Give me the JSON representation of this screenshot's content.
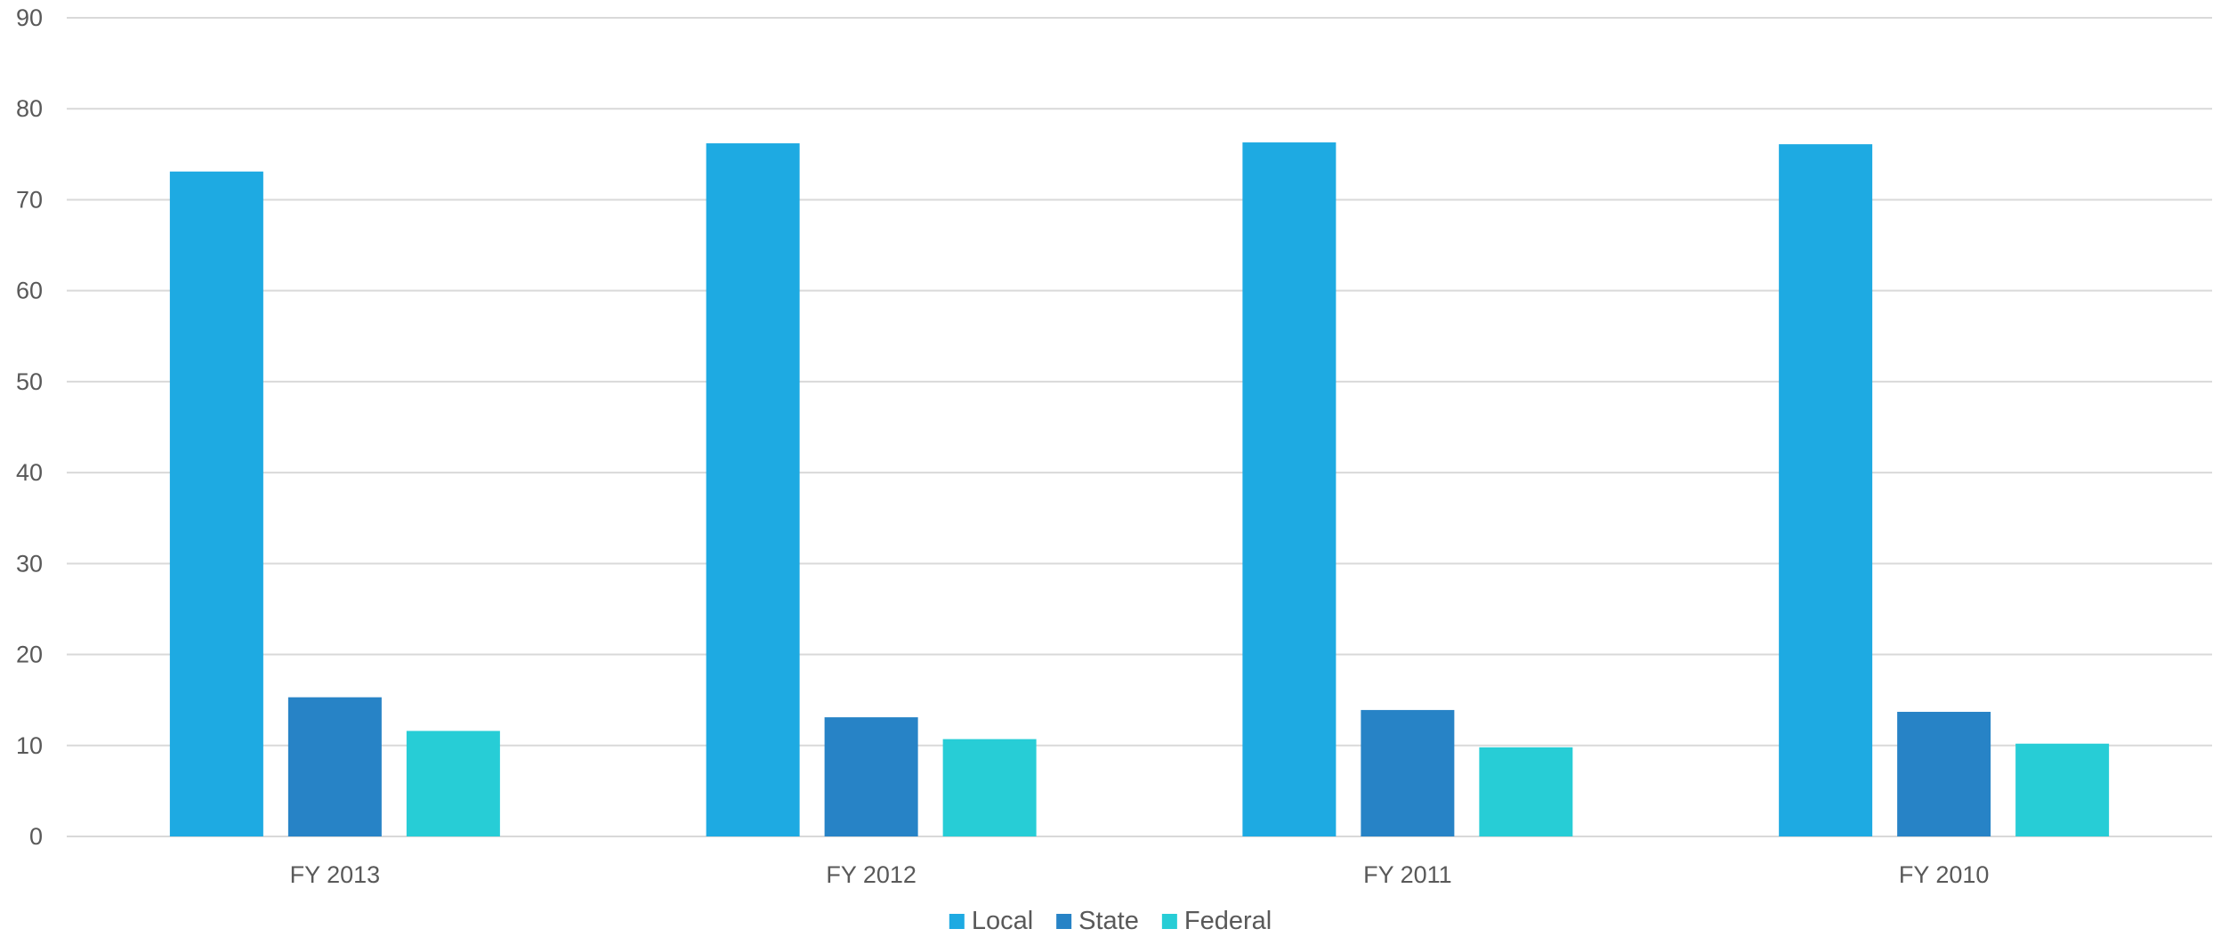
{
  "chart_data": {
    "type": "bar",
    "title": "",
    "xlabel": "",
    "ylabel": "",
    "categories": [
      "FY 2013",
      "FY 2012",
      "FY 2011",
      "FY 2010"
    ],
    "series": [
      {
        "name": "Local",
        "color": "#1eaae2",
        "values": [
          73.1,
          76.2,
          76.3,
          76.1
        ]
      },
      {
        "name": "State",
        "color": "#2783c6",
        "values": [
          15.3,
          13.1,
          13.9,
          13.7
        ]
      },
      {
        "name": "Federal",
        "color": "#27cdd6",
        "values": [
          11.6,
          10.7,
          9.8,
          10.2
        ]
      }
    ],
    "ylim": [
      0,
      90
    ],
    "yticks": [
      0,
      10,
      20,
      30,
      40,
      50,
      60,
      70,
      80,
      90
    ],
    "grid": true,
    "legend_position": "bottom"
  }
}
